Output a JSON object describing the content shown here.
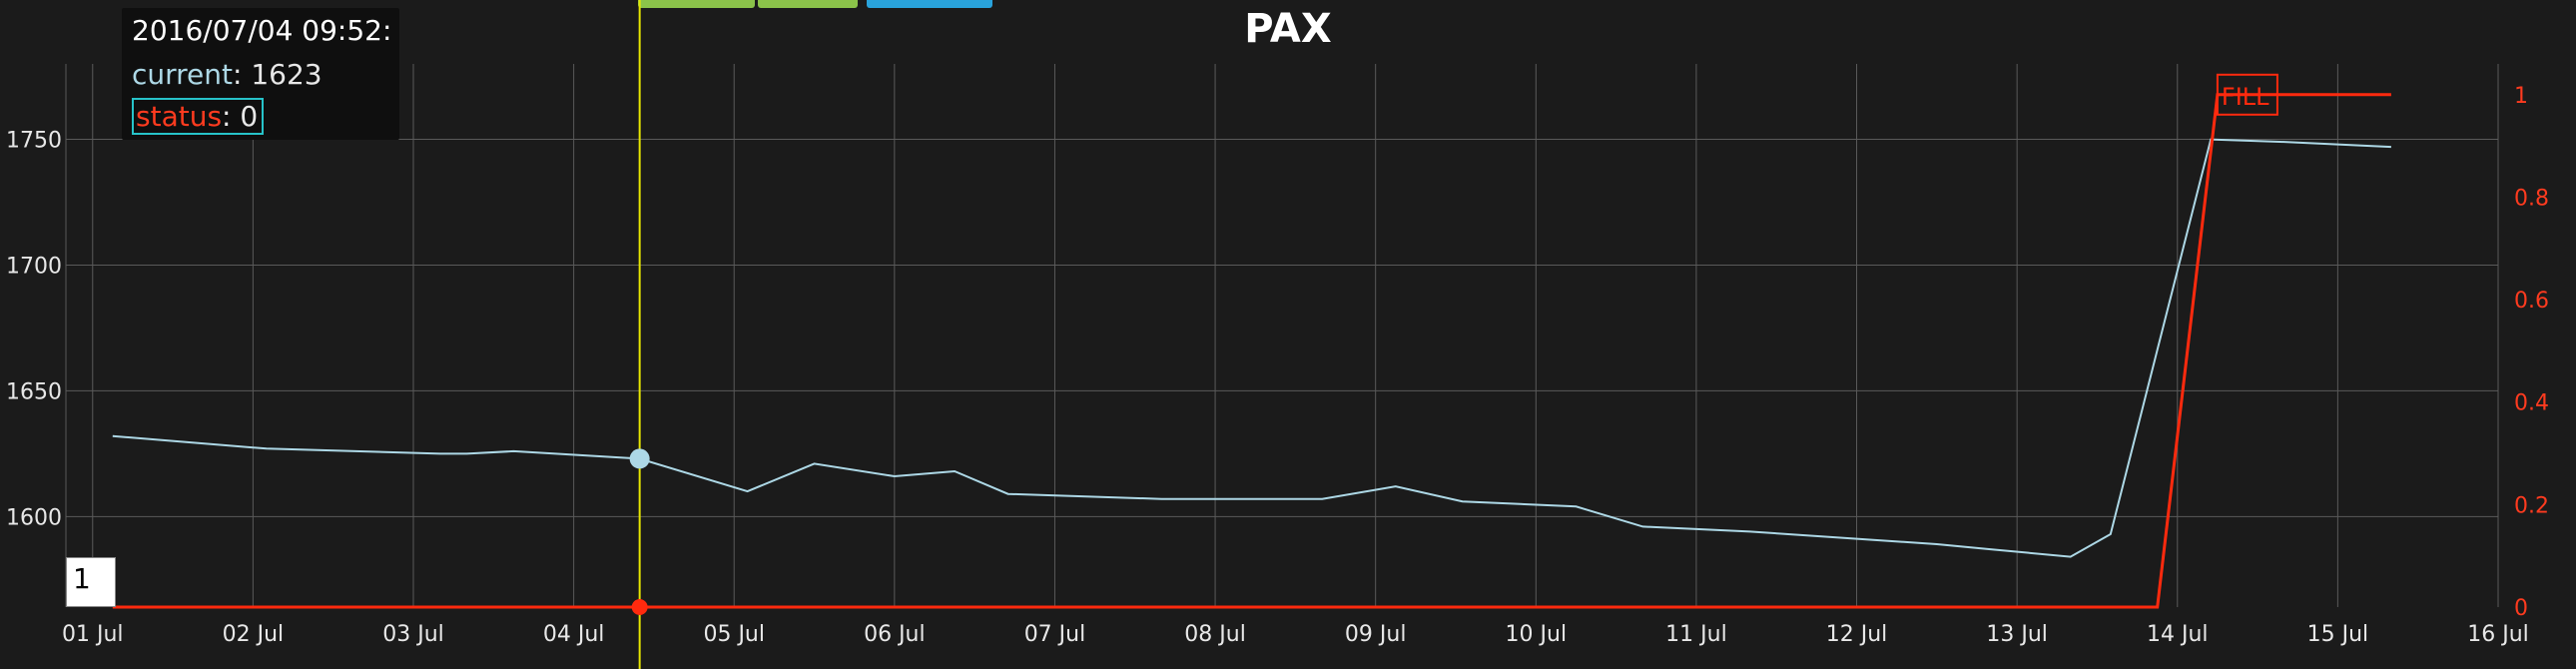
{
  "tabs": [
    {
      "color": "#8bc34a"
    },
    {
      "color": "#8bc34a"
    },
    {
      "color": "#29a3dc"
    }
  ],
  "tooltip": {
    "title": "2016/07/04 09:52:",
    "current_label": "current",
    "current_value": "1623",
    "status_label": "status",
    "status_value": "0"
  },
  "page_number": "1",
  "colors": {
    "background": "#1b1b1b",
    "grid": "#5a5a5a",
    "current": "#add8e6",
    "status": "#ff2a0e",
    "crosshair": "#e6e600",
    "tick_left": "#e8e8e8",
    "tick_right": "#ff3b1f"
  },
  "chart_data": {
    "type": "line",
    "title": "PAX",
    "x_type": "date",
    "x_range": [
      "2016-06-30T20:00",
      "2016-07-16T00:00"
    ],
    "x_ticks": [
      "2016-07-01",
      "2016-07-02",
      "2016-07-03",
      "2016-07-04",
      "2016-07-05",
      "2016-07-06",
      "2016-07-07",
      "2016-07-08",
      "2016-07-09",
      "2016-07-10",
      "2016-07-11",
      "2016-07-12",
      "2016-07-13",
      "2016-07-14",
      "2016-07-15",
      "2016-07-16"
    ],
    "x_tick_labels": [
      "01 Jul",
      "02 Jul",
      "03 Jul",
      "04 Jul",
      "05 Jul",
      "06 Jul",
      "07 Jul",
      "08 Jul",
      "09 Jul",
      "10 Jul",
      "11 Jul",
      "12 Jul",
      "13 Jul",
      "14 Jul",
      "15 Jul",
      "16 Jul"
    ],
    "y_left": {
      "range": [
        1564,
        1780
      ],
      "ticks": [
        1600,
        1650,
        1700,
        1750
      ],
      "tick_labels": [
        "1600",
        "1650",
        "1700",
        "1750"
      ]
    },
    "y_right": {
      "range": [
        0,
        1.06
      ],
      "ticks": [
        0,
        0.2,
        0.4,
        0.6,
        0.8,
        1
      ],
      "tick_labels": [
        "0",
        "0.2",
        "0.4",
        "0.6",
        "0.8",
        "1"
      ]
    },
    "grid": true,
    "series": [
      {
        "name": "current",
        "axis": "left",
        "x": [
          "2016-07-01T03:00",
          "2016-07-02T02:00",
          "2016-07-03T04:00",
          "2016-07-03T08:00",
          "2016-07-03T15:00",
          "2016-07-04T09:52",
          "2016-07-05T02:00",
          "2016-07-05T12:00",
          "2016-07-06T00:00",
          "2016-07-06T09:00",
          "2016-07-06T17:00",
          "2016-07-07T16:00",
          "2016-07-08T08:00",
          "2016-07-08T16:00",
          "2016-07-09T03:00",
          "2016-07-09T13:00",
          "2016-07-10T06:00",
          "2016-07-10T16:00",
          "2016-07-11T08:00",
          "2016-07-12T12:00",
          "2016-07-12T20:00",
          "2016-07-13T08:00",
          "2016-07-13T14:00",
          "2016-07-14T05:00",
          "2016-07-14T16:00",
          "2016-07-15T08:00"
        ],
        "y": [
          1632,
          1627,
          1625,
          1625,
          1626,
          1623,
          1610,
          1621,
          1616,
          1618,
          1609,
          1607,
          1607,
          1607,
          1612,
          1606,
          1604,
          1596,
          1594,
          1589,
          1587,
          1584,
          1593,
          1750,
          1749,
          1747
        ]
      },
      {
        "name": "status",
        "axis": "right",
        "x": [
          "2016-07-01T03:00",
          "2016-07-13T21:00",
          "2016-07-14T06:00",
          "2016-07-15T08:00"
        ],
        "y": [
          0,
          0,
          1,
          1
        ]
      }
    ],
    "crosshair": {
      "x": "2016-07-04T09:52"
    },
    "annotations": [
      {
        "text": "FILL",
        "x": "2016-07-14T06:00",
        "y": 1,
        "axis": "right"
      }
    ]
  }
}
